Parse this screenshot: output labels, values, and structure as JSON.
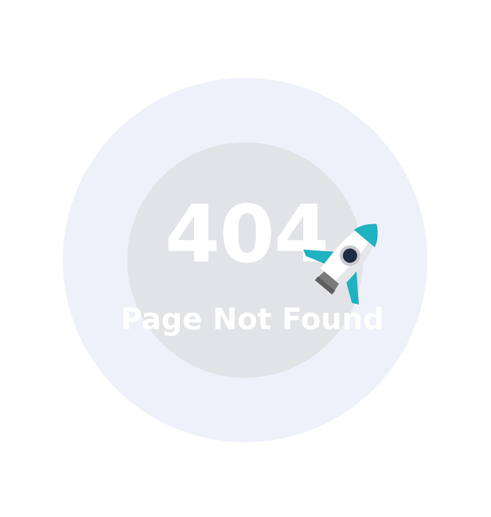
{
  "colors": {
    "page_background": "#ffffff",
    "outer_circle": "#eef0fa",
    "inner_circle": "#e2e3e7",
    "text": "#ffffff",
    "rocket_accent": "#1fb2c0",
    "rocket_body": "#ffffff",
    "rocket_nozzle": "#7a7a7a",
    "porthole": "#1f2d44"
  },
  "error": {
    "code": "404",
    "message": "Page Not Found"
  },
  "illustration": {
    "icon": "rocket-icon"
  }
}
